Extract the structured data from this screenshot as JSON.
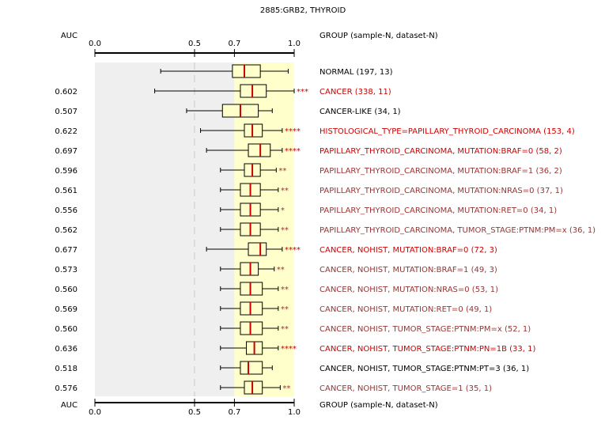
{
  "chart_data": {
    "type": "boxplot",
    "title": "2885:GRB2, THYROID",
    "auc_header": "AUC",
    "group_header": "GROUP (sample-N, dataset-N)",
    "xlim": [
      0,
      1
    ],
    "ticks": [
      {
        "value": 0.0,
        "label": "0.0"
      },
      {
        "value": 0.5,
        "label": "0.5"
      },
      {
        "value": 0.7,
        "label": "0.7"
      },
      {
        "value": 1.0,
        "label": "1.0"
      }
    ],
    "colors": {
      "red": "#cc0000",
      "darkred": "#993333",
      "black": "#000000",
      "grey_band": "#efefef",
      "yellow_band": "#ffffcc",
      "median": "#cc0000",
      "box_fill": "#ffffcc"
    },
    "rows": [
      {
        "auc": "",
        "label": "NORMAL (197, 13)",
        "color": "black",
        "stars": "",
        "whisker_low": 0.33,
        "q1": 0.69,
        "median": 0.75,
        "q3": 0.83,
        "whisker_high": 0.97
      },
      {
        "auc": "0.602",
        "label": "CANCER (338, 11)",
        "color": "red",
        "stars": "***",
        "whisker_low": 0.3,
        "q1": 0.73,
        "median": 0.79,
        "q3": 0.86,
        "whisker_high": 1.0
      },
      {
        "auc": "0.507",
        "label": "CANCER-LIKE (34, 1)",
        "color": "black",
        "stars": "",
        "whisker_low": 0.46,
        "q1": 0.64,
        "median": 0.73,
        "q3": 0.82,
        "whisker_high": 0.89
      },
      {
        "auc": "0.622",
        "label": "HISTOLOGICAL_TYPE=PAPILLARY_THYROID_CARCINOMA (153, 4)",
        "color": "red",
        "stars": "****",
        "whisker_low": 0.53,
        "q1": 0.75,
        "median": 0.79,
        "q3": 0.84,
        "whisker_high": 0.94
      },
      {
        "auc": "0.697",
        "label": "PAPILLARY_THYROID_CARCINOMA, MUTATION:BRAF=0 (58, 2)",
        "color": "red",
        "stars": "****",
        "whisker_low": 0.56,
        "q1": 0.77,
        "median": 0.83,
        "q3": 0.88,
        "whisker_high": 0.94
      },
      {
        "auc": "0.596",
        "label": "PAPILLARY_THYROID_CARCINOMA, MUTATION:BRAF=1 (36, 2)",
        "color": "darkred",
        "stars": "**",
        "whisker_low": 0.63,
        "q1": 0.75,
        "median": 0.79,
        "q3": 0.83,
        "whisker_high": 0.91
      },
      {
        "auc": "0.561",
        "label": "PAPILLARY_THYROID_CARCINOMA, MUTATION:NRAS=0 (37, 1)",
        "color": "darkred",
        "stars": "**",
        "whisker_low": 0.63,
        "q1": 0.73,
        "median": 0.78,
        "q3": 0.83,
        "whisker_high": 0.92
      },
      {
        "auc": "0.556",
        "label": "PAPILLARY_THYROID_CARCINOMA, MUTATION:RET=0 (34, 1)",
        "color": "darkred",
        "stars": "*",
        "whisker_low": 0.63,
        "q1": 0.73,
        "median": 0.78,
        "q3": 0.83,
        "whisker_high": 0.92
      },
      {
        "auc": "0.562",
        "label": "PAPILLARY_THYROID_CARCINOMA, TUMOR_STAGE:PTNM:PM=x (36, 1)",
        "color": "darkred",
        "stars": "**",
        "whisker_low": 0.63,
        "q1": 0.73,
        "median": 0.78,
        "q3": 0.83,
        "whisker_high": 0.92
      },
      {
        "auc": "0.677",
        "label": "CANCER, NOHIST, MUTATION:BRAF=0 (72, 3)",
        "color": "red",
        "stars": "****",
        "whisker_low": 0.56,
        "q1": 0.77,
        "median": 0.83,
        "q3": 0.86,
        "whisker_high": 0.94
      },
      {
        "auc": "0.573",
        "label": "CANCER, NOHIST, MUTATION:BRAF=1 (49, 3)",
        "color": "darkred",
        "stars": "**",
        "whisker_low": 0.63,
        "q1": 0.73,
        "median": 0.78,
        "q3": 0.82,
        "whisker_high": 0.9
      },
      {
        "auc": "0.560",
        "label": "CANCER, NOHIST, MUTATION:NRAS=0 (53, 1)",
        "color": "darkred",
        "stars": "**",
        "whisker_low": 0.63,
        "q1": 0.73,
        "median": 0.78,
        "q3": 0.84,
        "whisker_high": 0.92
      },
      {
        "auc": "0.569",
        "label": "CANCER, NOHIST, MUTATION:RET=0 (49, 1)",
        "color": "darkred",
        "stars": "**",
        "whisker_low": 0.63,
        "q1": 0.73,
        "median": 0.78,
        "q3": 0.84,
        "whisker_high": 0.92
      },
      {
        "auc": "0.560",
        "label": "CANCER, NOHIST, TUMOR_STAGE:PTNM:PM=x (52, 1)",
        "color": "darkred",
        "stars": "**",
        "whisker_low": 0.63,
        "q1": 0.73,
        "median": 0.78,
        "q3": 0.84,
        "whisker_high": 0.92
      },
      {
        "auc": "0.636",
        "label": "CANCER, NOHIST, TUMOR_STAGE:PTNM:PN=1B (33, 1)",
        "color": "red",
        "stars": "****",
        "whisker_low": 0.63,
        "q1": 0.76,
        "median": 0.8,
        "q3": 0.84,
        "whisker_high": 0.92
      },
      {
        "auc": "0.518",
        "label": "CANCER, NOHIST, TUMOR_STAGE:PTNM:PT=3 (36, 1)",
        "color": "black",
        "stars": "",
        "whisker_low": 0.63,
        "q1": 0.73,
        "median": 0.77,
        "q3": 0.84,
        "whisker_high": 0.89
      },
      {
        "auc": "0.576",
        "label": "CANCER, NOHIST, TUMOR_STAGE=1 (35, 1)",
        "color": "darkred",
        "stars": "**",
        "whisker_low": 0.63,
        "q1": 0.75,
        "median": 0.79,
        "q3": 0.84,
        "whisker_high": 0.93
      }
    ]
  }
}
